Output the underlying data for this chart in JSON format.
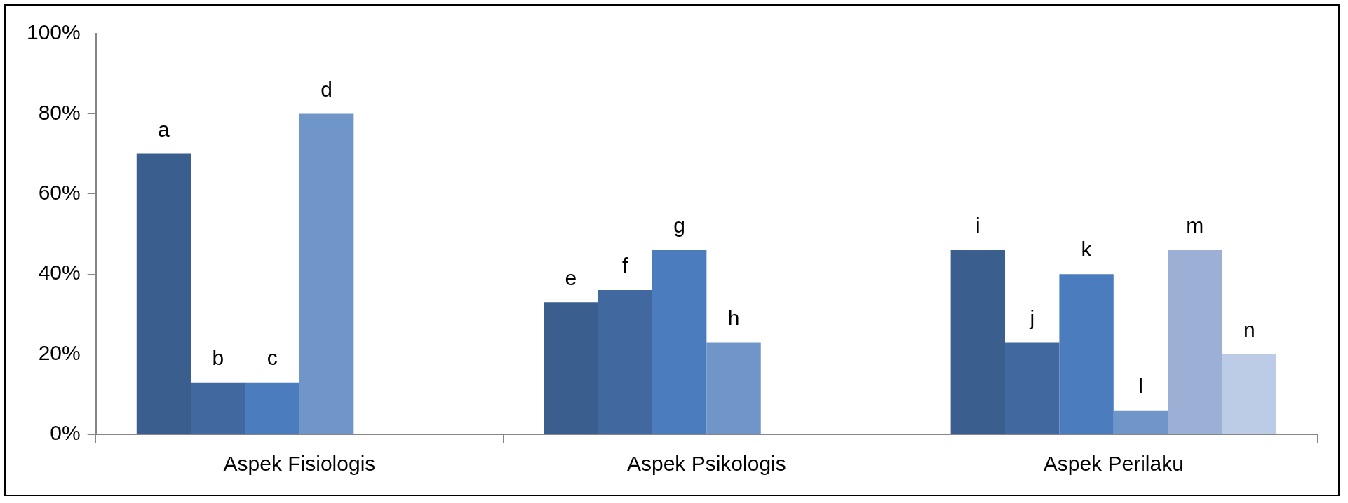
{
  "chart_data": {
    "type": "bar",
    "categories": [
      "Aspek Fisiologis",
      "Aspek Psikologis",
      "Aspek Perilaku"
    ],
    "series": [
      {
        "color": "#3a5e8e",
        "values": [
          70,
          33,
          46
        ],
        "value_labels": [
          "a",
          "e",
          "i"
        ]
      },
      {
        "color": "#41699f",
        "values": [
          13,
          36,
          23
        ],
        "value_labels": [
          "b",
          "f",
          "j"
        ]
      },
      {
        "color": "#4a7cbe",
        "values": [
          13,
          46,
          40
        ],
        "value_labels": [
          "c",
          "g",
          "k"
        ]
      },
      {
        "color": "#7095c9",
        "values": [
          80,
          23,
          6
        ],
        "value_labels": [
          "d",
          "h",
          "l"
        ]
      },
      {
        "color": "#9cb0d6",
        "values": [
          null,
          null,
          46
        ],
        "value_labels": [
          null,
          null,
          "m"
        ]
      },
      {
        "color": "#bccbe6",
        "values": [
          null,
          null,
          20
        ],
        "value_labels": [
          null,
          null,
          "n"
        ]
      }
    ],
    "ylim": [
      0,
      100
    ],
    "yticks": [
      {
        "value": 0,
        "label": "0%"
      },
      {
        "value": 20,
        "label": "20%"
      },
      {
        "value": 40,
        "label": "40%"
      },
      {
        "value": 60,
        "label": "60%"
      },
      {
        "value": 80,
        "label": "80%"
      },
      {
        "value": 100,
        "label": "100%"
      }
    ],
    "grid": false,
    "legend": false
  }
}
